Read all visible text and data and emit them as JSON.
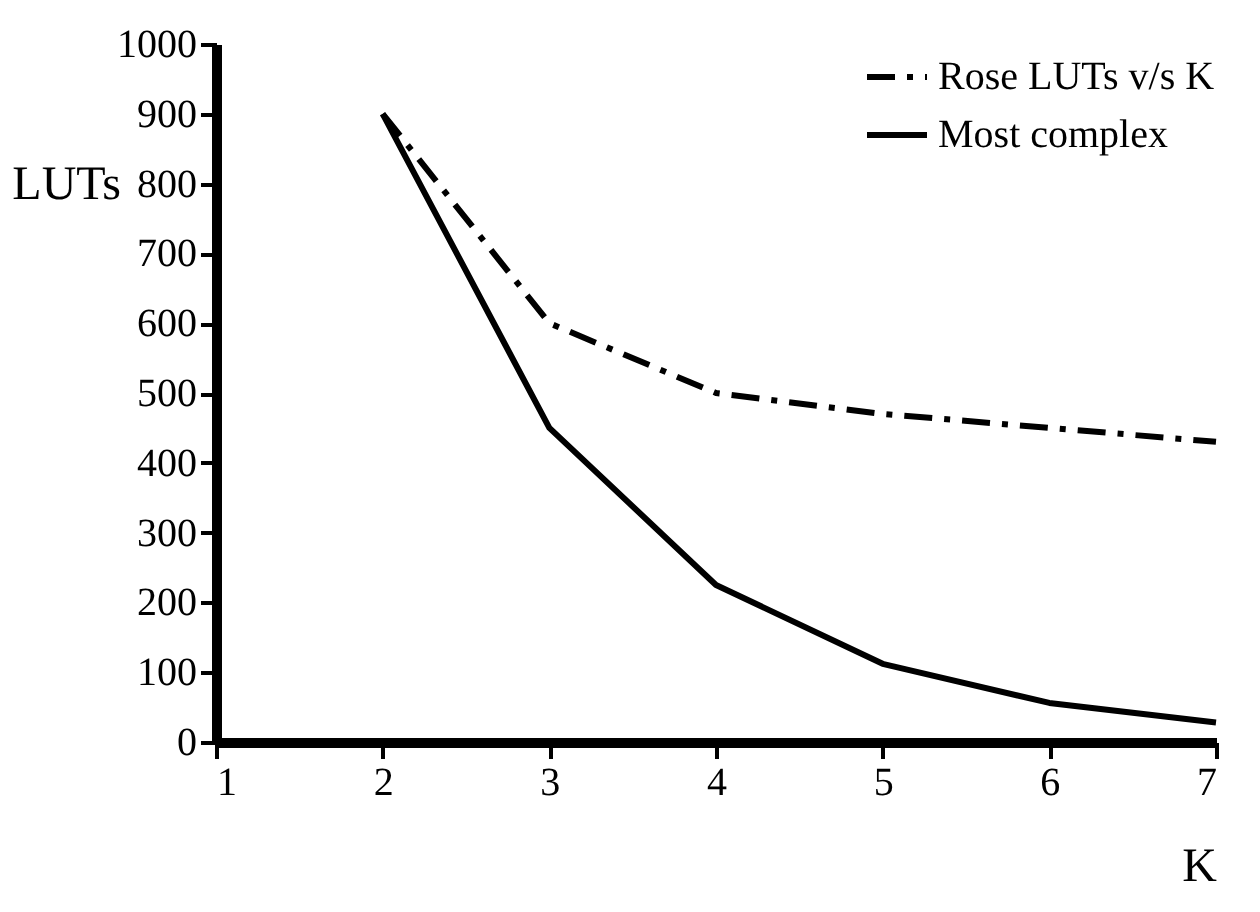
{
  "chart_data": {
    "type": "line",
    "xlabel": "K",
    "ylabel": "LUTs",
    "x": [
      2,
      3,
      4,
      5,
      6,
      7
    ],
    "series": [
      {
        "name": "Rose LUTs v/s K",
        "color": "#000000",
        "line_style": "dashed",
        "values": [
          900,
          600,
          500,
          470,
          450,
          430
        ]
      },
      {
        "name": "Most complex",
        "color": "#000000",
        "line_style": "solid",
        "values": [
          900,
          450,
          225,
          112,
          56,
          28
        ]
      }
    ],
    "xlim": [
      1,
      7
    ],
    "xticks": [
      1,
      2,
      3,
      4,
      5,
      6,
      7
    ],
    "ylim": [
      0,
      1000
    ],
    "yticks": [
      0,
      100,
      200,
      300,
      400,
      500,
      600,
      700,
      800,
      900,
      1000
    ],
    "grid": false,
    "legend": "top right",
    "marker": "none"
  }
}
